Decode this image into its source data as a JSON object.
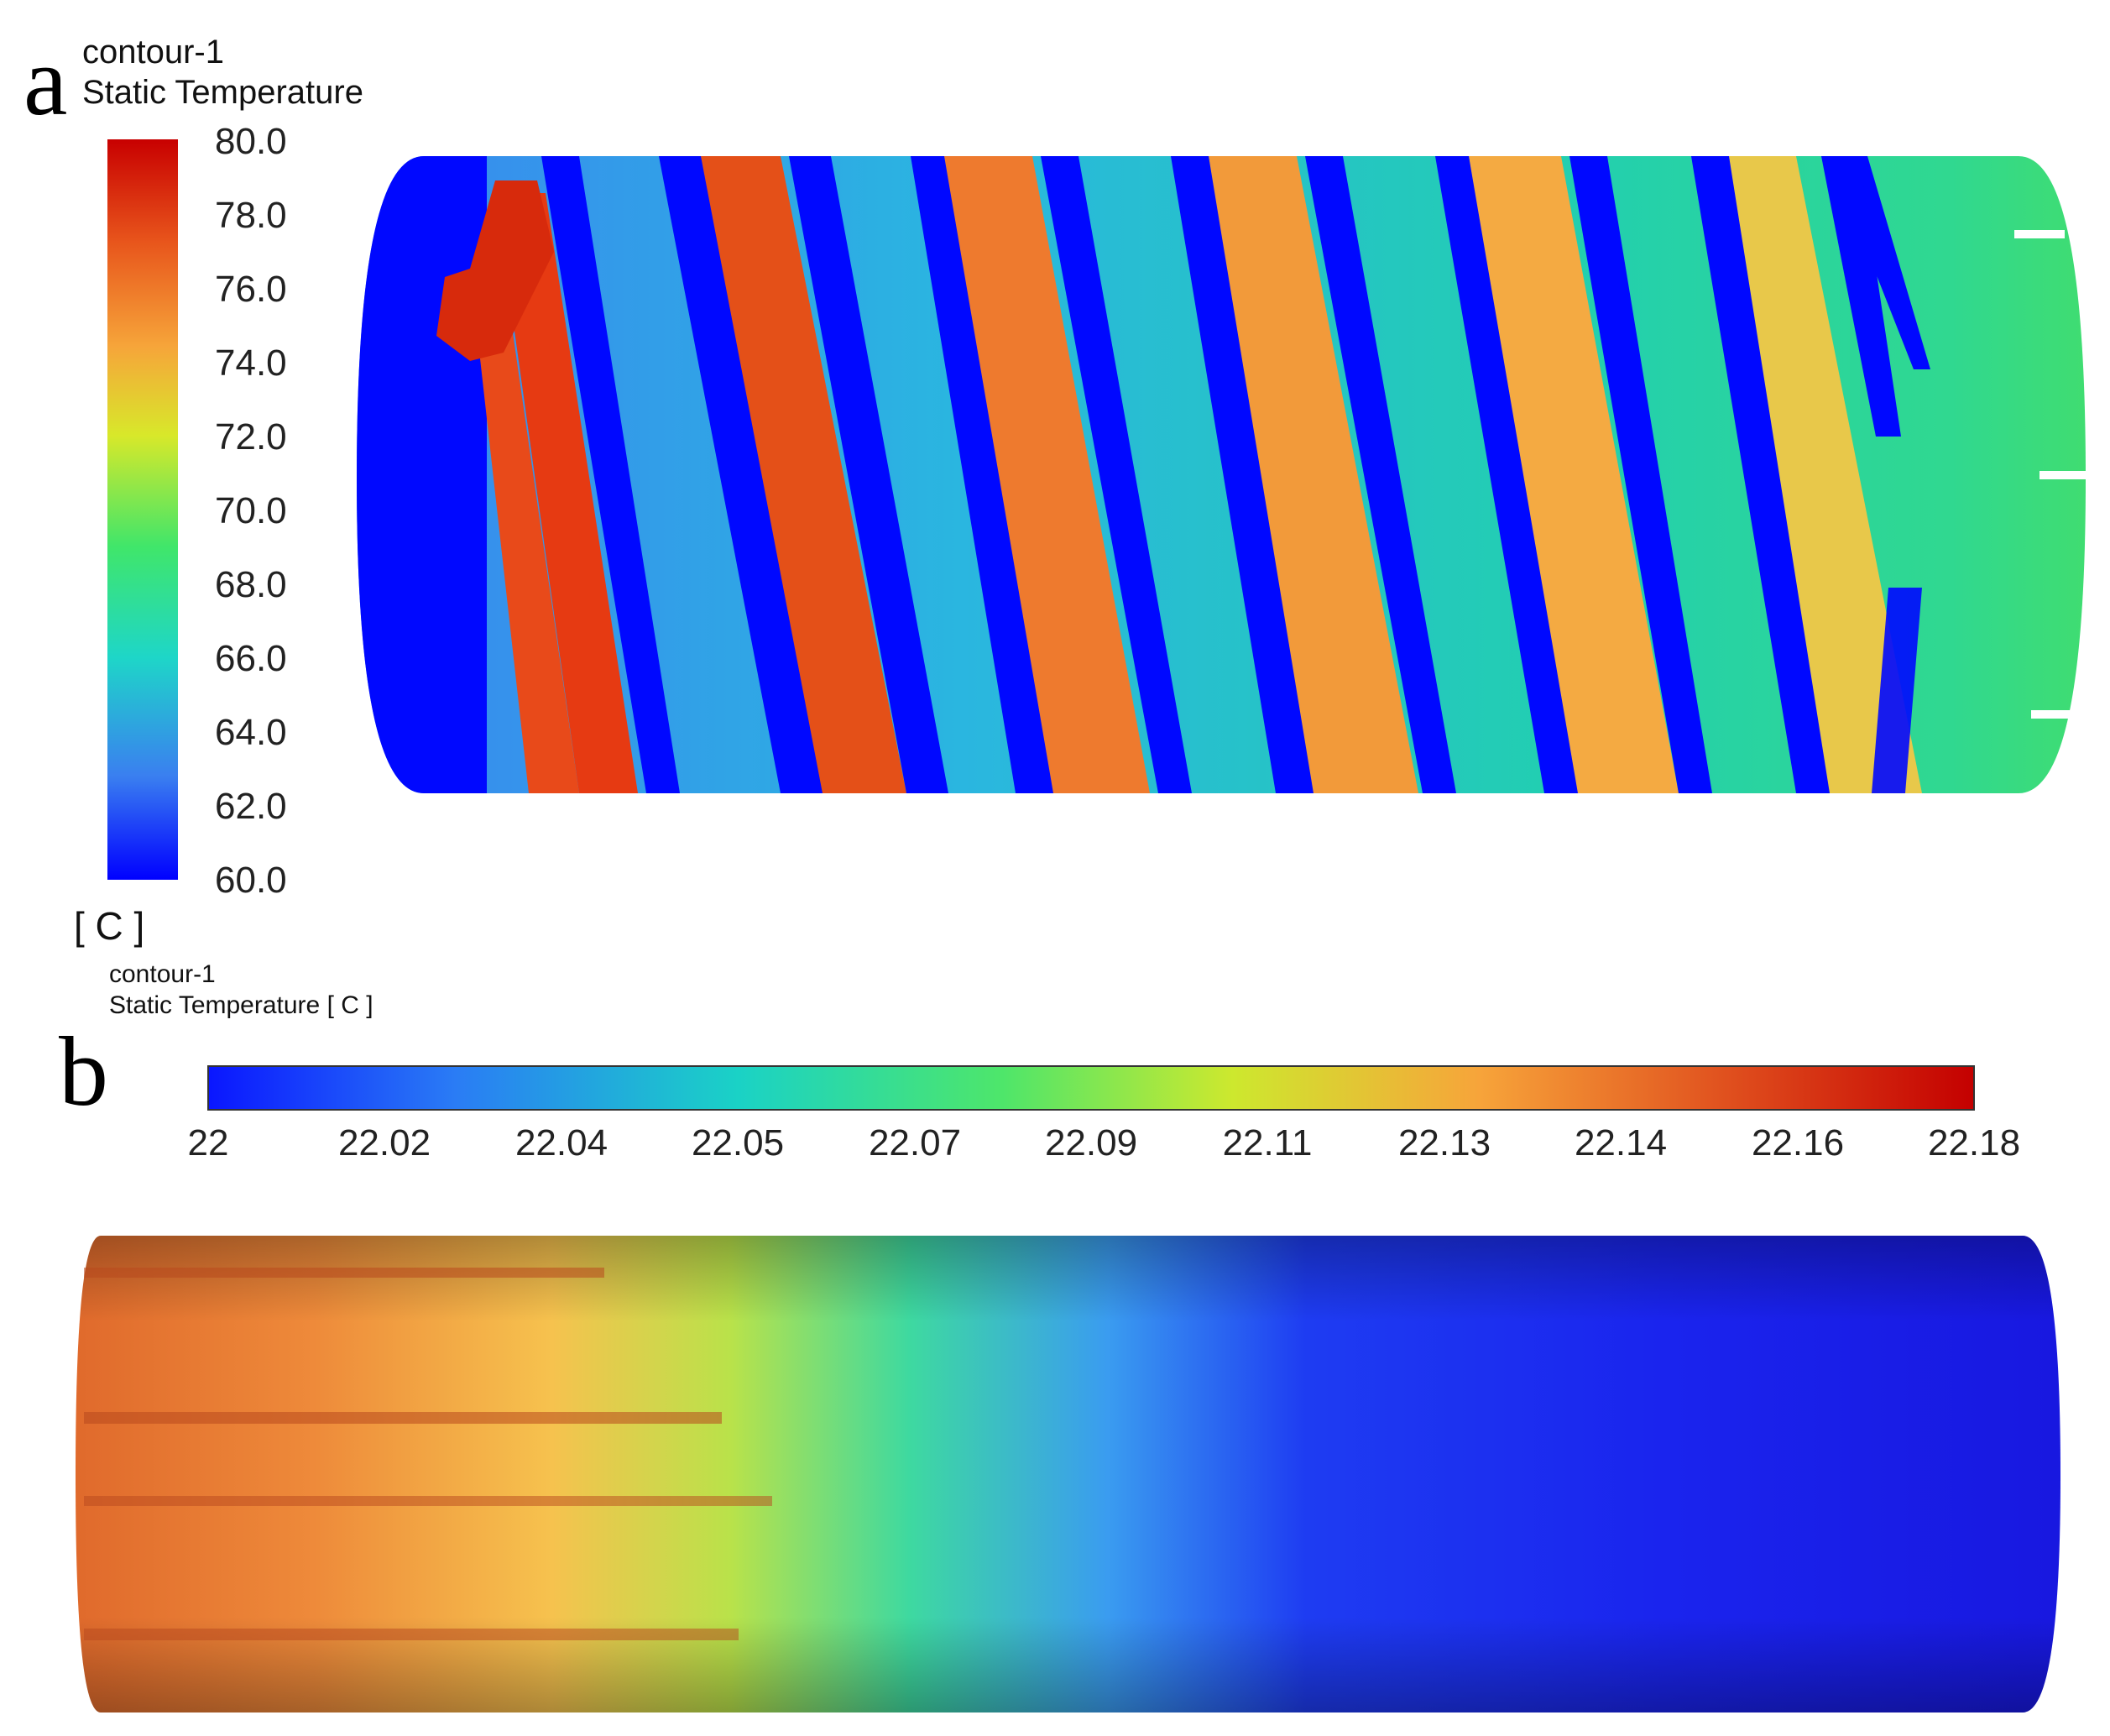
{
  "panel_a": {
    "letter": "a",
    "legend_line1": "contour-1",
    "legend_line2": "Static Temperature",
    "unit": "[ C ]",
    "colorbar_ticks": [
      "80.0",
      "78.0",
      "76.0",
      "74.0",
      "72.0",
      "70.0",
      "68.0",
      "66.0",
      "64.0",
      "62.0",
      "60.0"
    ],
    "range": [
      60.0,
      80.0
    ],
    "colormap": [
      "#0000ff",
      "#3a7ff0",
      "#1ed6c8",
      "#40e66a",
      "#d8e82a",
      "#f6a53a",
      "#e8561c",
      "#c80000"
    ]
  },
  "panel_b": {
    "letter": "b",
    "legend_line1": "contour-1",
    "legend_line2": "Static Temperature [ C ]",
    "colorbar_ticks": [
      "22",
      "22.02",
      "22.04",
      "22.05",
      "22.07",
      "22.09",
      "22.11",
      "22.13",
      "22.14",
      "22.16",
      "22.18"
    ],
    "range": [
      22.0,
      22.18
    ],
    "colormap": [
      "#0a16ff",
      "#2a7cf5",
      "#1ad2c6",
      "#4ee66a",
      "#cde82e",
      "#f7a43a",
      "#e0501e",
      "#c40000"
    ]
  },
  "colors": {
    "background": "#ffffff",
    "cold": "#0000ff",
    "hot": "#c80000"
  }
}
